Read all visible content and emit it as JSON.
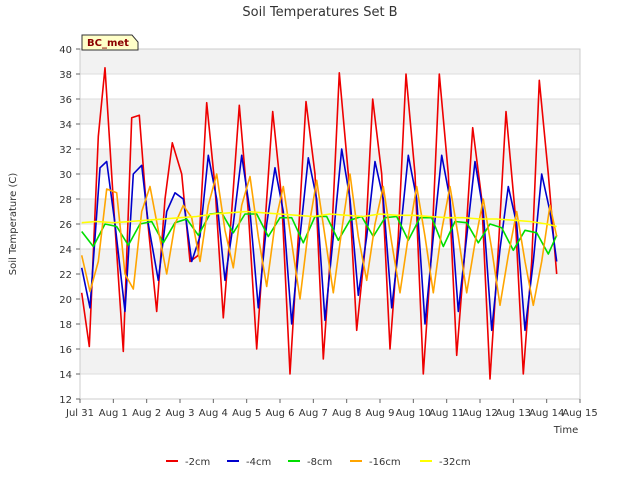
{
  "chart_data": {
    "type": "line",
    "title": "Soil Temperatures Set B",
    "xlabel": "Time",
    "ylabel": "Soil Temperature (C)",
    "ylim": [
      12,
      40
    ],
    "yticks": [
      12,
      14,
      16,
      18,
      20,
      22,
      24,
      26,
      28,
      30,
      32,
      34,
      36,
      38,
      40
    ],
    "xlim": [
      0,
      15
    ],
    "xticks": [
      {
        "x": 0,
        "label": "Jul 31"
      },
      {
        "x": 1,
        "label": "Aug 1"
      },
      {
        "x": 2,
        "label": "Aug 2"
      },
      {
        "x": 3,
        "label": "Aug 3"
      },
      {
        "x": 4,
        "label": "Aug 4"
      },
      {
        "x": 5,
        "label": "Aug 5"
      },
      {
        "x": 6,
        "label": "Aug 6"
      },
      {
        "x": 7,
        "label": "Aug 7"
      },
      {
        "x": 8,
        "label": "Aug 8"
      },
      {
        "x": 9,
        "label": "Aug 9"
      },
      {
        "x": 10,
        "label": "Aug 10"
      },
      {
        "x": 11,
        "label": "Aug 11"
      },
      {
        "x": 12,
        "label": "Aug 12"
      },
      {
        "x": 13,
        "label": "Aug 13"
      },
      {
        "x": 14,
        "label": "Aug 14"
      },
      {
        "x": 15,
        "label": "Aug 15"
      }
    ],
    "grid": "horizontal bands",
    "legend_position": "bottom",
    "station_label": "BC_met",
    "series": [
      {
        "name": "-2cm",
        "color": "#ee0000",
        "x": [
          0.05,
          0.28,
          0.55,
          0.75,
          1.02,
          1.3,
          1.55,
          1.78,
          2.0,
          2.3,
          2.55,
          2.77,
          3.05,
          3.3,
          3.55,
          3.8,
          4.05,
          4.3,
          4.55,
          4.78,
          5.05,
          5.3,
          5.55,
          5.78,
          6.05,
          6.3,
          6.55,
          6.78,
          7.05,
          7.3,
          7.55,
          7.78,
          8.05,
          8.3,
          8.55,
          8.78,
          9.05,
          9.3,
          9.55,
          9.78,
          10.05,
          10.3,
          10.55,
          10.78,
          11.05,
          11.3,
          11.55,
          11.78,
          12.05,
          12.3,
          12.55,
          12.78,
          13.05,
          13.3,
          13.55,
          13.78,
          14.05,
          14.3
        ],
        "y": [
          20.5,
          16.2,
          33,
          38.5,
          27,
          15.8,
          34.5,
          34.7,
          27,
          19,
          28,
          32.5,
          30,
          23,
          23.5,
          35.7,
          29,
          18.5,
          27,
          35.5,
          27,
          16,
          26,
          35,
          28,
          14,
          25,
          35.8,
          30,
          15.2,
          25,
          38.1,
          30,
          17.5,
          24,
          36,
          30,
          16,
          25,
          38,
          30,
          14,
          24,
          38,
          30,
          15.5,
          24,
          33.7,
          28,
          13.6,
          24,
          35,
          27,
          14,
          23,
          37.5,
          30,
          22
        ]
      },
      {
        "name": "-4cm",
        "color": "#0000cc",
        "x": [
          0.05,
          0.3,
          0.6,
          0.8,
          1.05,
          1.35,
          1.6,
          1.85,
          2.05,
          2.35,
          2.6,
          2.85,
          3.1,
          3.35,
          3.6,
          3.85,
          4.1,
          4.35,
          4.6,
          4.85,
          5.1,
          5.35,
          5.6,
          5.85,
          6.1,
          6.35,
          6.6,
          6.85,
          7.1,
          7.35,
          7.6,
          7.85,
          8.1,
          8.35,
          8.6,
          8.85,
          9.1,
          9.35,
          9.6,
          9.85,
          10.1,
          10.35,
          10.6,
          10.85,
          11.1,
          11.35,
          11.6,
          11.85,
          12.1,
          12.35,
          12.6,
          12.85,
          13.1,
          13.35,
          13.6,
          13.85,
          14.1,
          14.3
        ],
        "y": [
          22.5,
          19.3,
          30.5,
          31,
          26,
          19,
          30,
          30.7,
          26,
          21.5,
          27,
          28.5,
          28,
          23,
          25,
          31.5,
          28,
          21.5,
          26,
          31.5,
          27,
          19.3,
          26,
          30.5,
          27,
          18,
          25,
          31.3,
          28,
          18.3,
          25,
          32,
          28,
          20.3,
          25,
          31,
          28,
          19.3,
          25,
          31.5,
          28,
          18,
          25,
          31.5,
          28,
          19,
          25,
          31,
          27,
          17.5,
          24,
          29,
          26,
          17.5,
          23,
          30,
          27,
          23
        ]
      },
      {
        "name": "-8cm",
        "color": "#00dd00",
        "x": [
          0.05,
          0.4,
          0.75,
          1.1,
          1.45,
          1.8,
          2.15,
          2.5,
          2.85,
          3.2,
          3.55,
          3.9,
          4.25,
          4.6,
          4.95,
          5.3,
          5.65,
          6.0,
          6.35,
          6.7,
          7.05,
          7.4,
          7.75,
          8.1,
          8.45,
          8.8,
          9.15,
          9.5,
          9.85,
          10.2,
          10.55,
          10.9,
          11.25,
          11.6,
          11.95,
          12.3,
          12.65,
          13.0,
          13.35,
          13.7,
          14.05,
          14.3
        ],
        "y": [
          25.4,
          24.2,
          26,
          25.8,
          24.3,
          26,
          26.2,
          24.5,
          26.1,
          26.4,
          25.1,
          26.8,
          26.9,
          25.3,
          26.8,
          26.8,
          25.0,
          26.5,
          26.5,
          24.5,
          26.6,
          26.6,
          24.7,
          26.3,
          26.6,
          25.0,
          26.5,
          26.6,
          24.7,
          26.5,
          26.5,
          24.2,
          26.2,
          26.1,
          24.5,
          26.0,
          25.7,
          23.9,
          25.5,
          25.3,
          23.6,
          25.1
        ]
      },
      {
        "name": "-16cm",
        "color": "#ffa500",
        "x": [
          0.05,
          0.3,
          0.55,
          0.8,
          1.1,
          1.35,
          1.6,
          1.85,
          2.1,
          2.35,
          2.6,
          2.85,
          3.1,
          3.35,
          3.6,
          3.85,
          4.1,
          4.35,
          4.6,
          4.85,
          5.1,
          5.35,
          5.6,
          5.85,
          6.1,
          6.35,
          6.6,
          6.85,
          7.1,
          7.35,
          7.6,
          7.85,
          8.1,
          8.35,
          8.6,
          8.85,
          9.1,
          9.35,
          9.6,
          9.85,
          10.1,
          10.35,
          10.6,
          10.85,
          11.1,
          11.35,
          11.6,
          11.85,
          12.1,
          12.35,
          12.6,
          12.85,
          13.1,
          13.35,
          13.6,
          13.85,
          14.1,
          14.3
        ],
        "y": [
          23.5,
          20.6,
          23,
          28.8,
          28.5,
          22,
          20.8,
          27,
          29,
          25.5,
          22,
          26,
          27.5,
          26.5,
          23,
          27.5,
          30,
          25.5,
          22.5,
          27.5,
          29.8,
          25,
          21,
          26,
          29,
          24.5,
          20,
          25.5,
          29.5,
          25,
          20.5,
          25.5,
          30,
          25,
          21.5,
          26,
          29,
          24.5,
          20.5,
          25,
          29,
          25,
          20.5,
          25.5,
          29,
          25,
          20.5,
          24.5,
          28,
          24,
          19.5,
          23.5,
          27,
          23,
          19.5,
          23,
          27.5,
          25
        ]
      },
      {
        "name": "-32cm",
        "color": "#ffff00",
        "x": [
          0.05,
          0.5,
          1.0,
          1.5,
          2.0,
          2.5,
          3.0,
          3.5,
          4.0,
          4.5,
          5.0,
          5.5,
          6.0,
          6.5,
          7.0,
          7.5,
          8.0,
          8.5,
          9.0,
          9.5,
          10.0,
          10.5,
          11.0,
          11.5,
          12.0,
          12.5,
          13.0,
          13.5,
          14.0,
          14.3
        ],
        "y": [
          26.1,
          26.2,
          26.1,
          26.2,
          26.3,
          26.4,
          26.5,
          26.6,
          26.8,
          26.9,
          27.0,
          26.9,
          26.8,
          26.7,
          26.6,
          26.8,
          26.7,
          26.6,
          26.8,
          26.7,
          26.7,
          26.6,
          26.5,
          26.5,
          26.4,
          26.4,
          26.3,
          26.2,
          26.0,
          25.8
        ]
      }
    ]
  }
}
